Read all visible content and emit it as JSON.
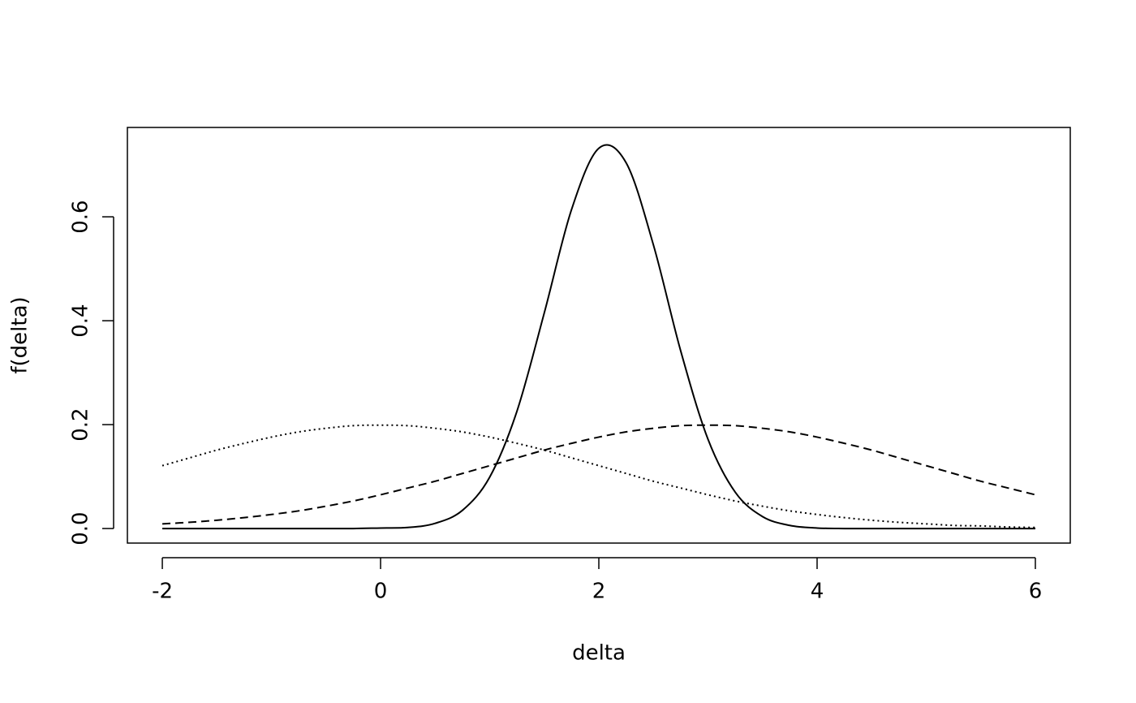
{
  "chart_data": {
    "type": "line",
    "xlabel": "delta",
    "ylabel": "f(delta)",
    "x": [
      -2,
      -1.75,
      -1.5,
      -1.25,
      -1,
      -0.75,
      -0.5,
      -0.25,
      0,
      0.25,
      0.5,
      0.75,
      1,
      1.25,
      1.5,
      1.75,
      2,
      2.25,
      2.5,
      2.75,
      3,
      3.25,
      3.5,
      3.75,
      4,
      4.25,
      4.5,
      4.75,
      5,
      5.25,
      5.5,
      5.75,
      6
    ],
    "series": [
      {
        "color": "#000000",
        "dash": "solid",
        "values": [
          0,
          0,
          0,
          0,
          0,
          0,
          0,
          0,
          0.001,
          0.002,
          0.01,
          0.035,
          0.099,
          0.226,
          0.415,
          0.614,
          0.732,
          0.704,
          0.546,
          0.342,
          0.172,
          0.07,
          0.023,
          0.006,
          0.001,
          0,
          0,
          0,
          0,
          0,
          0,
          0,
          0
        ]
      },
      {
        "color": "#000000",
        "dash": "dashed",
        "values": [
          0.009,
          0.012,
          0.016,
          0.021,
          0.027,
          0.034,
          0.043,
          0.053,
          0.065,
          0.078,
          0.091,
          0.106,
          0.121,
          0.136,
          0.151,
          0.164,
          0.176,
          0.186,
          0.193,
          0.198,
          0.199,
          0.198,
          0.193,
          0.186,
          0.176,
          0.164,
          0.151,
          0.136,
          0.121,
          0.106,
          0.091,
          0.078,
          0.065
        ]
      },
      {
        "color": "#000000",
        "dash": "dotted",
        "values": [
          0.121,
          0.136,
          0.151,
          0.164,
          0.176,
          0.186,
          0.193,
          0.198,
          0.199,
          0.198,
          0.193,
          0.186,
          0.176,
          0.164,
          0.151,
          0.136,
          0.121,
          0.106,
          0.091,
          0.078,
          0.065,
          0.053,
          0.043,
          0.034,
          0.027,
          0.021,
          0.016,
          0.012,
          0.009,
          0.006,
          0.005,
          0.003,
          0.002
        ]
      }
    ],
    "xlim": [
      -2.32,
      6.32
    ],
    "xticks": [
      -2,
      0,
      2,
      4,
      6
    ],
    "ylim": [
      -0.028,
      0.772
    ],
    "yticks": [
      {
        "value": 0,
        "label": "0.0"
      },
      0.2,
      0.4,
      0.6
    ],
    "grid": false
  }
}
